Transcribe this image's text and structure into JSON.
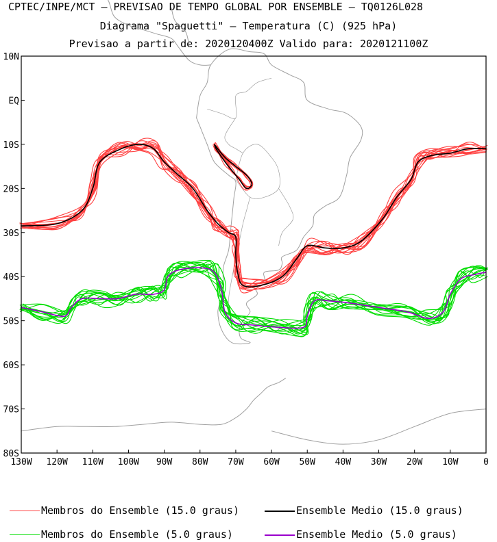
{
  "header": {
    "line1": "CPTEC/INPE/MCT – PREVISAO DE TEMPO GLOBAL POR ENSEMBLE – TQ0126L028",
    "line2": "Diagrama \"Spaguetti\" – Temperatura (C) (925 hPa)",
    "line3": "Previsao a partir de: 2020120400Z  Valido para: 2020121100Z"
  },
  "axes": {
    "lat_labels": [
      "10N",
      "EQ",
      "10S",
      "20S",
      "30S",
      "40S",
      "50S",
      "60S",
      "70S",
      "80S"
    ],
    "lon_labels": [
      "130W",
      "120W",
      "110W",
      "100W",
      "90W",
      "80W",
      "70W",
      "60W",
      "50W",
      "40W",
      "30W",
      "20W",
      "10W",
      "0"
    ]
  },
  "legend": {
    "red_members": "Membros do Ensemble (15.0 graus)",
    "black_mean": "Ensemble Medio (15.0 graus)",
    "green_members": "Membros do Ensemble (5.0 graus)",
    "purple_mean": "Ensemble Medio (5.0 graus)"
  },
  "colors": {
    "members_15": "#ff4040",
    "mean_15": "#000000",
    "members_5": "#00dd00",
    "mean_5": "#9900cc",
    "coast": "#a0a0a0"
  },
  "map_data": {
    "projection": "lat-lon",
    "lon_range": [
      -130,
      0
    ],
    "lat_range": [
      -80,
      10
    ],
    "mean_15": [
      [
        -130,
        -28.5
      ],
      [
        -120,
        -28
      ],
      [
        -113,
        -25
      ],
      [
        -110,
        -20
      ],
      [
        -108,
        -14
      ],
      [
        -102,
        -11
      ],
      [
        -97,
        -10
      ],
      [
        -93,
        -11
      ],
      [
        -90,
        -14
      ],
      [
        -86,
        -17
      ],
      [
        -82,
        -20
      ],
      [
        -78,
        -25
      ],
      [
        -75,
        -28
      ],
      [
        -72,
        -30
      ],
      [
        -70,
        -31
      ],
      [
        -70,
        -35
      ],
      [
        -69.5,
        -39
      ],
      [
        -68,
        -42
      ],
      [
        -63,
        -42
      ],
      [
        -57,
        -40
      ],
      [
        -53,
        -36
      ],
      [
        -50,
        -33
      ],
      [
        -45,
        -33.5
      ],
      [
        -40,
        -33.5
      ],
      [
        -35,
        -32
      ],
      [
        -29,
        -27
      ],
      [
        -25,
        -22
      ],
      [
        -21,
        -18
      ],
      [
        -19,
        -14
      ],
      [
        -15,
        -12.5
      ],
      [
        -10,
        -12
      ],
      [
        -5,
        -11
      ],
      [
        0,
        -11
      ]
    ],
    "mean_5": [
      [
        -130,
        -47
      ],
      [
        -124,
        -48
      ],
      [
        -118,
        -49
      ],
      [
        -116,
        -47
      ],
      [
        -113,
        -45
      ],
      [
        -108,
        -45
      ],
      [
        -103,
        -45
      ],
      [
        -98,
        -44
      ],
      [
        -93,
        -44
      ],
      [
        -90,
        -43
      ],
      [
        -89,
        -40
      ],
      [
        -86,
        -38.5
      ],
      [
        -80,
        -38
      ],
      [
        -76,
        -39
      ],
      [
        -74,
        -43
      ],
      [
        -73,
        -48
      ],
      [
        -70,
        -50.5
      ],
      [
        -65,
        -51
      ],
      [
        -58,
        -51.5
      ],
      [
        -51,
        -51.5
      ],
      [
        -50,
        -49
      ],
      [
        -48,
        -45.5
      ],
      [
        -44,
        -45.5
      ],
      [
        -38,
        -46
      ],
      [
        -30,
        -47
      ],
      [
        -22,
        -48
      ],
      [
        -16,
        -49.5
      ],
      [
        -12,
        -48
      ],
      [
        -10,
        -44
      ],
      [
        -7,
        -40.5
      ],
      [
        -3,
        -39.5
      ],
      [
        0,
        -39
      ]
    ],
    "closed_contour_15": [
      [
        -76,
        -10
      ],
      [
        -73,
        -13
      ],
      [
        -70,
        -15
      ],
      [
        -67,
        -17
      ],
      [
        -65.5,
        -19
      ],
      [
        -67,
        -20
      ],
      [
        -69,
        -18
      ],
      [
        -71,
        -16
      ],
      [
        -73,
        -14
      ],
      [
        -75.5,
        -11
      ],
      [
        -76,
        -10
      ]
    ]
  }
}
